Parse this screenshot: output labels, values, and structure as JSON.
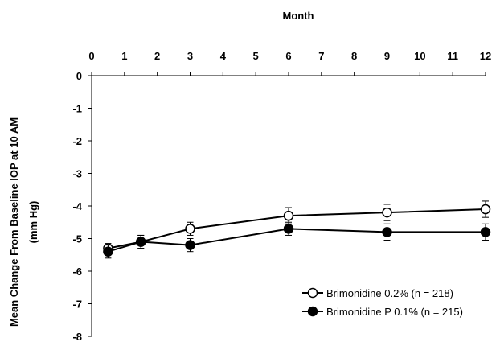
{
  "chart_data": {
    "type": "line",
    "xlabel": "Month",
    "ylabel_lines": [
      "Mean Change From Baseline IOP at 10 AM",
      "(mm Hg)"
    ],
    "x_ticks": [
      0,
      1,
      2,
      3,
      4,
      5,
      6,
      7,
      8,
      9,
      10,
      11,
      12
    ],
    "y_ticks": [
      0,
      -1,
      -2,
      -3,
      -4,
      -5,
      -6,
      -7,
      -8
    ],
    "xlim": [
      0,
      12
    ],
    "ylim": [
      -8,
      0
    ],
    "x_axis_position": "top",
    "legend_position": "bottom-right",
    "grid": false,
    "series": [
      {
        "name": "Brimonidine 0.2% (n = 218)",
        "marker": "open-circle",
        "color": "#000000",
        "x": [
          0.5,
          1.5,
          3,
          6,
          9,
          12
        ],
        "y": [
          -5.3,
          -5.1,
          -4.7,
          -4.3,
          -4.2,
          -4.1
        ],
        "error": [
          0.15,
          0.2,
          0.2,
          0.25,
          0.25,
          0.25
        ]
      },
      {
        "name": "Brimonidine P 0.1% (n = 215)",
        "marker": "filled-circle",
        "color": "#000000",
        "x": [
          0.5,
          1.5,
          3,
          6,
          9,
          12
        ],
        "y": [
          -5.4,
          -5.1,
          -5.2,
          -4.7,
          -4.8,
          -4.8
        ],
        "error": [
          0.2,
          0.2,
          0.2,
          0.2,
          0.25,
          0.25
        ]
      }
    ]
  }
}
